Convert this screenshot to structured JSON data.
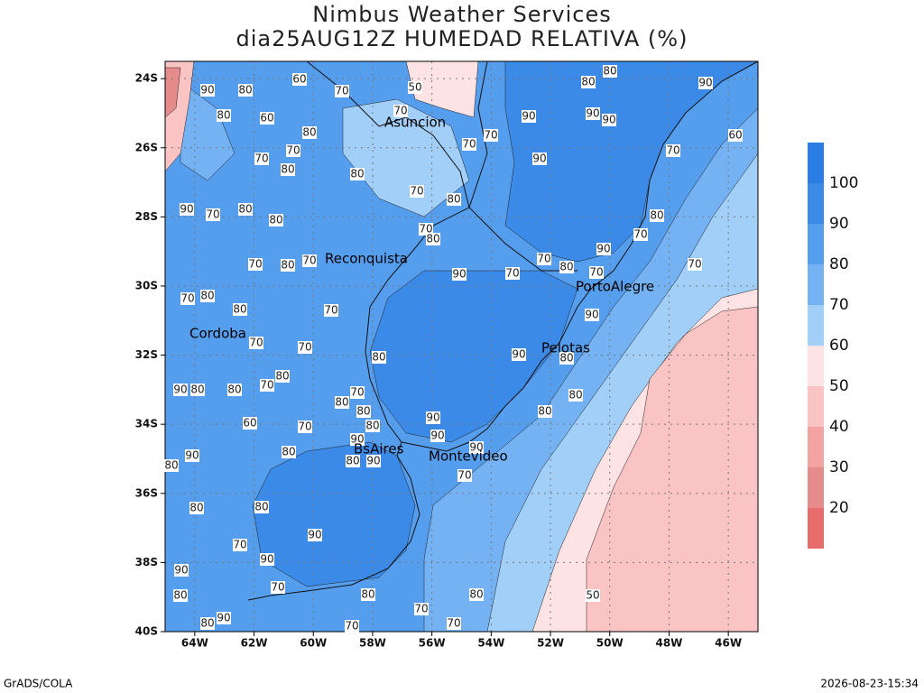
{
  "header": {
    "title": "Nimbus Weather Services",
    "subtitle": "dia25AUG12Z HUMEDAD RELATIVA (%)"
  },
  "map": {
    "lon_range": [
      -65,
      -45
    ],
    "lat_range": [
      -40,
      -23.5
    ],
    "lon_ticks": [
      {
        "value": -64,
        "label": "64W"
      },
      {
        "value": -62,
        "label": "62W"
      },
      {
        "value": -60,
        "label": "60W"
      },
      {
        "value": -58,
        "label": "58W"
      },
      {
        "value": -56,
        "label": "56W"
      },
      {
        "value": -54,
        "label": "54W"
      },
      {
        "value": -52,
        "label": "52W"
      },
      {
        "value": -50,
        "label": "50W"
      },
      {
        "value": -48,
        "label": "48W"
      },
      {
        "value": -46,
        "label": "46W"
      }
    ],
    "lat_ticks": [
      {
        "value": -24,
        "label": "24S"
      },
      {
        "value": -26,
        "label": "26S"
      },
      {
        "value": -28,
        "label": "28S"
      },
      {
        "value": -30,
        "label": "30S"
      },
      {
        "value": -32,
        "label": "32S"
      },
      {
        "value": -34,
        "label": "34S"
      },
      {
        "value": -36,
        "label": "36S"
      },
      {
        "value": -38,
        "label": "38S"
      },
      {
        "value": -40,
        "label": "40S"
      }
    ],
    "cities": [
      "Asuncion",
      "Reconquista",
      "Cordoba",
      "PortoAlegre",
      "Pelotas",
      "BsAires",
      "Montevideo"
    ],
    "contour_labels": [
      90,
      80,
      80,
      60,
      60,
      70,
      80,
      70,
      50,
      70,
      70,
      90,
      80,
      80,
      90,
      90,
      90,
      70,
      90,
      60,
      80,
      70,
      90,
      80,
      70,
      70,
      70,
      90,
      70,
      80,
      70,
      80,
      80,
      80,
      70,
      70,
      80,
      70,
      90,
      80,
      70,
      80,
      70,
      70,
      80,
      80,
      70,
      70,
      70,
      80,
      90,
      80,
      80,
      80,
      90,
      70,
      80,
      70,
      80,
      80,
      90,
      70,
      80,
      80,
      90,
      80,
      90,
      90,
      90,
      80,
      90,
      70,
      70,
      80,
      60,
      90,
      80,
      80,
      80,
      90,
      70,
      90,
      90,
      70,
      80,
      80,
      70,
      80,
      50,
      70,
      80,
      90,
      70
    ]
  },
  "colorbar": {
    "levels": [
      100,
      90,
      80,
      70,
      60,
      50,
      40,
      30,
      20
    ],
    "colors": [
      "#2a7de4",
      "#3b8ae8",
      "#559ded",
      "#75b2f3",
      "#a2cff8",
      "#fde3e3",
      "#fbc4c4",
      "#f5a2a2",
      "#e68b8b",
      "#e86c6c"
    ]
  },
  "footer": {
    "left": "GrADS/COLA",
    "right": "2026-08-23-15:34"
  }
}
